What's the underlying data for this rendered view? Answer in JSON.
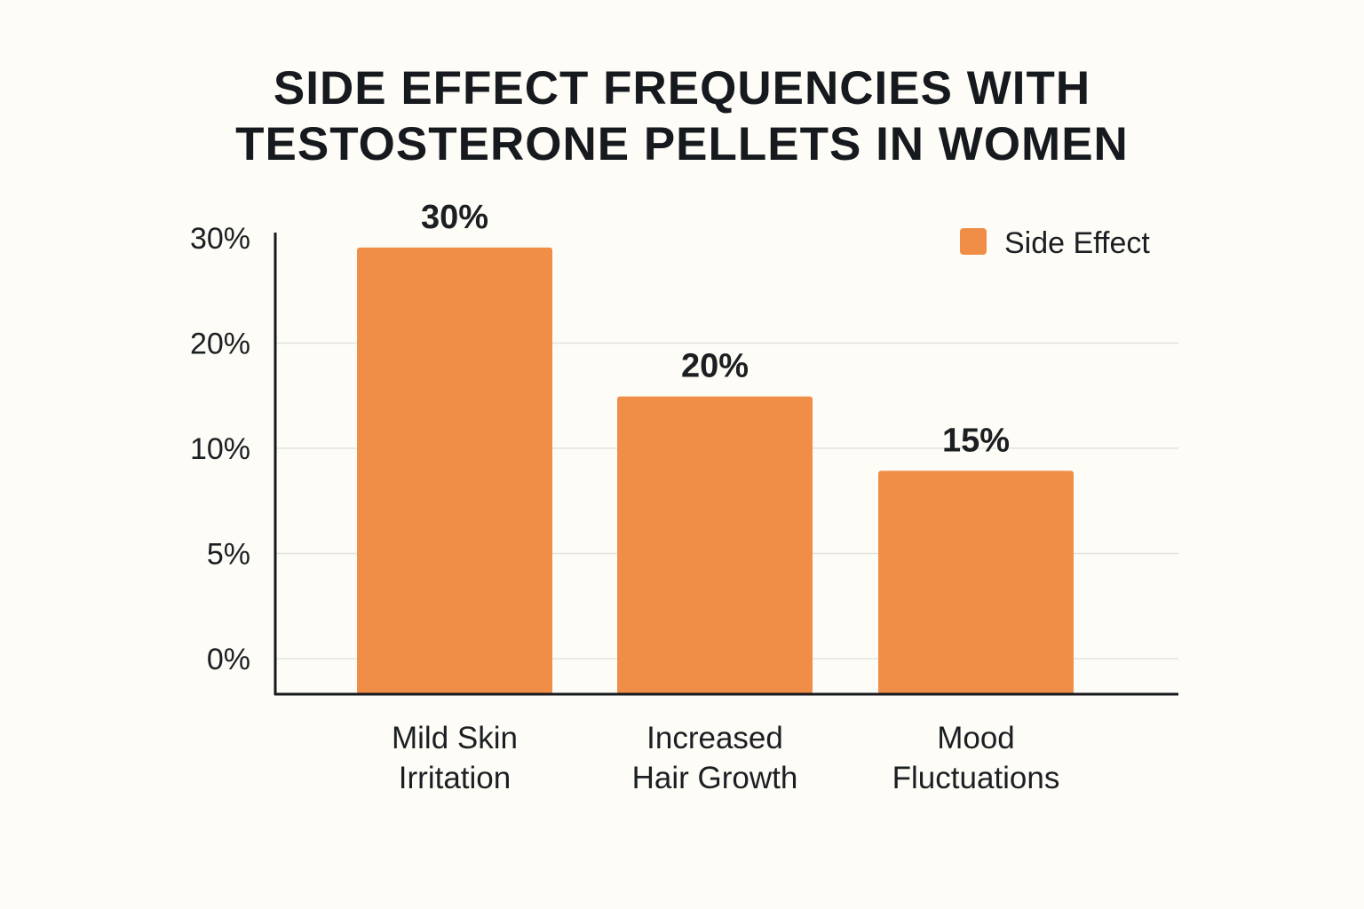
{
  "chart_data": {
    "type": "bar",
    "title_lines": [
      "SIDE EFFECT FREQUENCIES WITH",
      "TESTOSTERONE PELLETS IN WOMEN"
    ],
    "categories": [
      [
        "Mild Skin",
        "Irritation"
      ],
      [
        "Increased",
        "Hair Growth"
      ],
      [
        "Mood",
        "Fluctuations"
      ]
    ],
    "series": [
      {
        "name": "Side Effect",
        "values": [
          30,
          20,
          15
        ],
        "color": "#f08d46"
      }
    ],
    "value_labels": [
      "30%",
      "20%",
      "15%"
    ],
    "y_ticks": [
      {
        "label": "30%",
        "level": 0
      },
      {
        "label": "20%",
        "level": 1
      },
      {
        "label": "10%",
        "level": 2
      },
      {
        "label": "5%",
        "level": 3
      },
      {
        "label": "0%",
        "level": 4
      }
    ],
    "ylim": [
      0,
      35
    ],
    "grid": true,
    "legend_position": "top-right",
    "xlabel": "",
    "ylabel": ""
  }
}
